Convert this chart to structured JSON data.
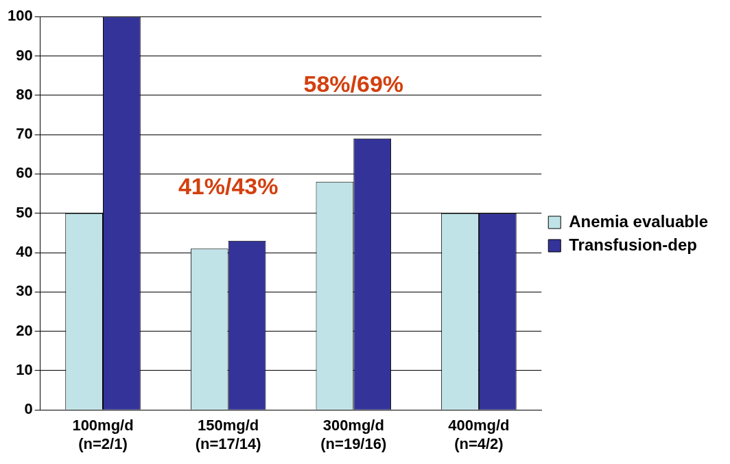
{
  "chart_data": {
    "type": "bar",
    "categories": [
      "100mg/d\n(n=2/1)",
      "150mg/d\n(n=17/14)",
      "300mg/d\n(n=19/16)",
      "400mg/d\n(n=4/2)"
    ],
    "series": [
      {
        "name": "Anemia evaluable",
        "color": "#bfe3e6",
        "values": [
          50,
          41,
          58,
          50
        ]
      },
      {
        "name": "Transfusion-dep",
        "color": "#333399",
        "values": [
          100,
          43,
          69,
          50
        ]
      }
    ],
    "ylim": [
      0,
      100
    ],
    "yticks": [
      0,
      10,
      20,
      30,
      40,
      50,
      60,
      70,
      80,
      90,
      100
    ],
    "grid": "y",
    "legend": "right",
    "annotations": [
      "41%/43%",
      "58%/69%"
    ]
  }
}
